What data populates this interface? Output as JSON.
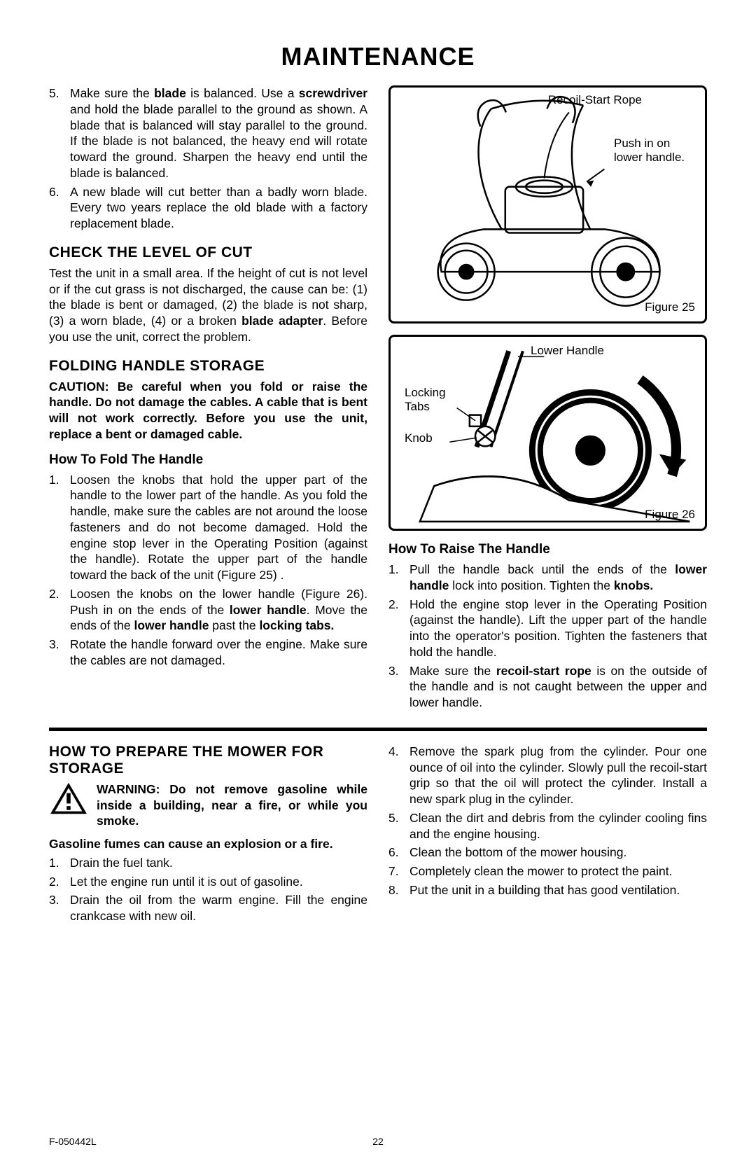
{
  "title": "MAINTENANCE",
  "footer": {
    "doc": "F-050442L",
    "page": "22"
  },
  "left": {
    "item5": "Make sure the <b>blade</b> is balanced. Use a <b>screwdriver</b> and hold the blade parallel to the ground as shown. A blade that is balanced will stay parallel to the ground. If the blade is not balanced, the heavy end will rotate toward the ground. Sharpen the heavy end until the blade is balanced.",
    "item6": "A new blade will cut better than a badly worn blade. Every two years replace the old blade with a factory replacement blade.",
    "check_title": "CHECK THE LEVEL OF CUT",
    "check_body": "Test the unit in a small area. If the height of cut is not level or if the cut grass is not discharged, the cause can be: (1) the blade is bent or damaged, (2) the blade is not sharp, (3) a worn blade, (4) or a broken <b>blade adapter</b>. Before you use the unit, correct the problem.",
    "fold_title": "FOLDING HANDLE STORAGE",
    "fold_caution": "<b>CAUTION: Be careful when you fold or raise the handle. Do not damage the cables. A cable that is bent will not work correctly. Before you use the unit, replace a bent or damaged cable.</b>",
    "fold_h3": "How To Fold The Handle",
    "fold1": "Loosen the knobs that hold the upper part of the handle to the lower part of the handle. As you fold the handle, make sure the cables are not around the loose fasteners and do not become damaged. Hold the engine stop lever in the Operating Position (against the handle). Rotate the upper part of the handle toward the back of the unit (Figure 25) .",
    "fold2": "Loosen the knobs on the lower handle (Figure 26). Push in on the ends of the <b>lower handle</b>. Move the ends of the <b>lower handle</b> past the <b>locking tabs.</b>",
    "fold3": "Rotate the handle forward over the engine. Make sure the cables are not damaged."
  },
  "fig25": {
    "recoil": "Recoil-Start  Rope",
    "push": "Push in on lower handle.",
    "cap": "Figure 25"
  },
  "fig26": {
    "lower": "Lower Handle",
    "tabs": "Locking Tabs",
    "knob": "Knob",
    "cap": "Figure 26"
  },
  "raise": {
    "title": "How To Raise The Handle",
    "i1": "Pull the handle back until the ends of the <b>lower handle</b> lock into position. Tighten the <b>knobs.</b>",
    "i2": "Hold the engine stop lever in the Operating Position (against the handle). Lift the upper part of the handle into the operator's position. Tighten the fasteners that hold the handle.",
    "i3": "Make sure the <b>recoil-start rope</b> is on the outside of the handle and is not caught between the upper and lower handle."
  },
  "storage": {
    "title": "HOW TO PREPARE THE MOWER FOR STORAGE",
    "warn_lead": "<b>WARNING: Do not remove gasoline while inside a building, near a fire, or while you smoke.</b>",
    "warn_tail": "<b>Gasoline fumes can cause an explosion or a fire.</b>",
    "l1": "Drain the fuel tank.",
    "l2": "Let the engine run until it is out of gasoline.",
    "l3": "Drain the oil from the warm engine. Fill the engine crankcase with new oil.",
    "r4": "Remove the spark plug from the cylinder. Pour one ounce of oil into the cylinder. Slowly pull the recoil-start grip so that the oil will protect the cylinder. Install a new spark plug in the cylinder.",
    "r5": "Clean the dirt and debris from the cylinder cooling fins and the engine housing.",
    "r6": "Clean the bottom of the mower housing.",
    "r7": "Completely clean the mower to protect the paint.",
    "r8": "Put the unit in a building that has good ventilation."
  }
}
